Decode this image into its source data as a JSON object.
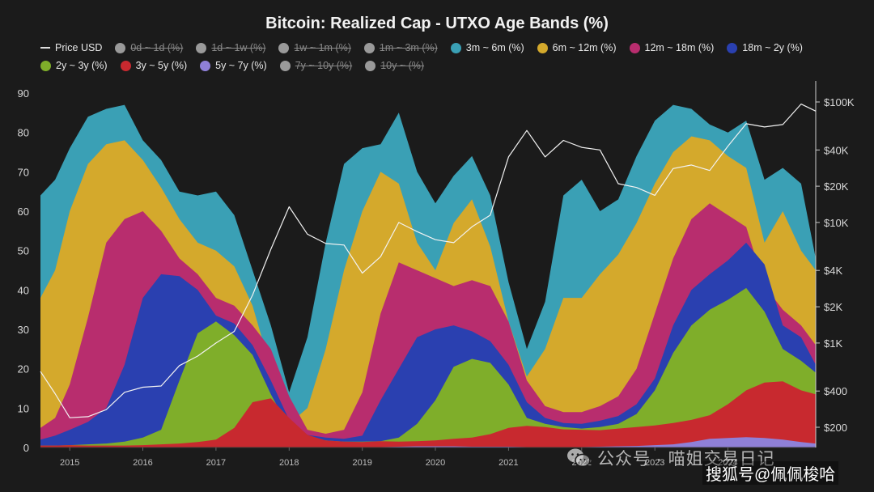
{
  "chart_data": {
    "type": "area",
    "title": "Bitcoin: Realized Cap - UTXO Age Bands (%)",
    "x_ticks": [
      "2015",
      "2016",
      "2017",
      "2018",
      "2019",
      "2020",
      "2021",
      "2022",
      "2023",
      "2024"
    ],
    "y_ticks": [
      "0",
      "10",
      "20",
      "30",
      "40",
      "50",
      "60",
      "70",
      "80",
      "90"
    ],
    "y2_ticks": [
      "$200",
      "$400",
      "$1K",
      "$2K",
      "$4K",
      "$10K",
      "$20K",
      "$40K",
      "$100K"
    ],
    "ylim": [
      0,
      90
    ],
    "y2_log": true,
    "stacking": "stacked percent of realized cap",
    "grid": false,
    "legend_position": "top",
    "x": [
      2014.6,
      2014.8,
      2015.0,
      2015.25,
      2015.5,
      2015.75,
      2016.0,
      2016.25,
      2016.5,
      2016.75,
      2017.0,
      2017.25,
      2017.5,
      2017.75,
      2018.0,
      2018.25,
      2018.5,
      2018.75,
      2019.0,
      2019.25,
      2019.5,
      2019.75,
      2020.0,
      2020.25,
      2020.5,
      2020.75,
      2021.0,
      2021.25,
      2021.5,
      2021.75,
      2022.0,
      2022.25,
      2022.5,
      2022.75,
      2023.0,
      2023.25,
      2023.5,
      2023.75,
      2024.0,
      2024.25,
      2024.5,
      2024.75,
      2025.0,
      2025.2
    ],
    "legend": [
      {
        "name": "Price USD",
        "color": "#dddddd",
        "enabled": true,
        "line": true
      },
      {
        "name": "0d ~ 1d (%)",
        "color": "#9a9a9a",
        "enabled": false
      },
      {
        "name": "1d ~ 1w (%)",
        "color": "#9a9a9a",
        "enabled": false
      },
      {
        "name": "1w ~ 1m (%)",
        "color": "#9a9a9a",
        "enabled": false
      },
      {
        "name": "1m ~ 3m (%)",
        "color": "#9a9a9a",
        "enabled": false
      },
      {
        "name": "3m ~ 6m (%)",
        "color": "#3aa0b5",
        "enabled": true
      },
      {
        "name": "6m ~ 12m (%)",
        "color": "#d4a92c",
        "enabled": true
      },
      {
        "name": "12m ~ 18m (%)",
        "color": "#b82d6e",
        "enabled": true
      },
      {
        "name": "18m ~ 2y (%)",
        "color": "#2a40b0",
        "enabled": true
      },
      {
        "name": "2y ~ 3y (%)",
        "color": "#7fae2a",
        "enabled": true
      },
      {
        "name": "3y ~ 5y (%)",
        "color": "#c8292f",
        "enabled": true
      },
      {
        "name": "5y ~ 7y (%)",
        "color": "#8f80d8",
        "enabled": true
      },
      {
        "name": "7y ~ 10y (%)",
        "color": "#9a9a9a",
        "enabled": false
      },
      {
        "name": "10y ~ (%)",
        "color": "#9a9a9a",
        "enabled": false
      }
    ],
    "series": [
      {
        "name": "5y ~ 7y (%)",
        "color": "#8f80d8",
        "values": [
          0.1,
          0.1,
          0.1,
          0.1,
          0.1,
          0.1,
          0.1,
          0.1,
          0.1,
          0.1,
          0.1,
          0.1,
          0.1,
          0.1,
          0.1,
          0.1,
          0.1,
          0.1,
          0.1,
          0.1,
          0.2,
          0.3,
          0.3,
          0.3,
          0.2,
          0.2,
          0.2,
          0.1,
          0.1,
          0.1,
          0.1,
          0.2,
          0.3,
          0.4,
          0.6,
          0.8,
          1.4,
          2.2,
          2.4,
          2.6,
          2.4,
          2.0,
          1.4,
          1.0
        ]
      },
      {
        "name": "3y ~ 5y (%)",
        "color": "#c8292f",
        "values": [
          0.5,
          0.5,
          0.6,
          0.5,
          0.5,
          0.5,
          0.6,
          0.8,
          1.0,
          1.4,
          2.0,
          5.0,
          11.5,
          12.5,
          7.5,
          3.2,
          1.8,
          1.5,
          1.4,
          1.6,
          1.5,
          1.6,
          1.8,
          2.2,
          2.5,
          3.4,
          5.0,
          5.5,
          5.2,
          4.6,
          4.5,
          4.4,
          4.8,
          5.2,
          5.6,
          6.2,
          7.0,
          8.2,
          11.0,
          14.5,
          16.5,
          16.8,
          14.5,
          13.5
        ]
      },
      {
        "name": "2y ~ 3y (%)",
        "color": "#7fae2a",
        "values": [
          0.5,
          0.5,
          0.6,
          0.8,
          1.0,
          1.5,
          2.5,
          4.5,
          17.0,
          29.0,
          32.0,
          28.5,
          23.5,
          13.5,
          5.0,
          2.3,
          1.8,
          1.5,
          1.5,
          1.6,
          2.5,
          6.0,
          12.0,
          20.5,
          22.5,
          21.5,
          16.0,
          7.5,
          6.0,
          5.2,
          4.8,
          5.2,
          6.0,
          8.5,
          14.5,
          24.0,
          31.0,
          35.0,
          37.5,
          40.5,
          34.5,
          25.0,
          22.0,
          19.0
        ]
      },
      {
        "name": "18m ~ 2y (%)",
        "color": "#2a40b0",
        "values": [
          2.0,
          3.0,
          4.5,
          6.5,
          10.0,
          21.0,
          38.0,
          44.0,
          43.5,
          40.0,
          33.5,
          31.5,
          26.0,
          17.0,
          7.0,
          3.2,
          2.5,
          2.2,
          3.0,
          12.0,
          20.0,
          28.0,
          30.0,
          31.0,
          29.5,
          27.0,
          21.0,
          11.5,
          7.5,
          6.2,
          6.0,
          6.8,
          8.0,
          11.0,
          17.5,
          31.0,
          40.0,
          44.0,
          47.5,
          52.0,
          46.5,
          31.0,
          28.0,
          21.0
        ]
      },
      {
        "name": "12m ~ 18m (%)",
        "color": "#b82d6e",
        "values": [
          5.0,
          7.5,
          16.0,
          33.0,
          52.0,
          58.0,
          60.0,
          55.0,
          48.0,
          44.0,
          38.0,
          36.0,
          31.0,
          25.0,
          13.0,
          4.5,
          3.5,
          4.5,
          14.0,
          34.0,
          47.0,
          45.0,
          43.0,
          41.0,
          42.5,
          41.0,
          32.0,
          17.0,
          10.5,
          9.0,
          9.0,
          10.5,
          13.0,
          20.0,
          34.0,
          48.0,
          58.0,
          62.0,
          59.0,
          56.0,
          41.0,
          35.0,
          31.0,
          26.0
        ]
      },
      {
        "name": "6m ~ 12m (%)",
        "color": "#d4a92c",
        "values": [
          38.0,
          45.0,
          60.0,
          72.0,
          77.0,
          78.0,
          73.0,
          66.0,
          58.0,
          52.0,
          50.0,
          46.0,
          36.0,
          20.0,
          6.0,
          10.0,
          25.0,
          45.0,
          60.0,
          70.0,
          67.0,
          52.0,
          45.0,
          57.0,
          63.0,
          51.0,
          32.0,
          18.0,
          25.0,
          38.0,
          38.0,
          44.0,
          49.0,
          57.0,
          67.0,
          75.0,
          79.0,
          78.0,
          74.0,
          71.0,
          52.0,
          60.0,
          50.0,
          45.0
        ]
      },
      {
        "name": "3m ~ 6m (%)",
        "color": "#3aa0b5",
        "values": [
          64.0,
          68.0,
          76.0,
          84.0,
          86.0,
          87.0,
          78.0,
          73.0,
          65.0,
          64.0,
          65.0,
          59.0,
          45.0,
          31.0,
          14.0,
          28.0,
          52.0,
          72.0,
          76.0,
          77.0,
          85.0,
          70.0,
          62.0,
          69.0,
          74.0,
          64.0,
          42.0,
          25.0,
          37.0,
          64.0,
          68.0,
          60.0,
          63.0,
          74.0,
          83.0,
          87.0,
          86.0,
          82.0,
          80.0,
          83.0,
          68.0,
          71.0,
          67.0,
          48.0
        ]
      }
    ],
    "price_series": {
      "name": "Price USD",
      "values": [
        580,
        380,
        240,
        245,
        280,
        390,
        430,
        440,
        650,
        780,
        1000,
        1250,
        2500,
        6000,
        13500,
        8000,
        6700,
        6500,
        3800,
        5200,
        10000,
        8400,
        7200,
        6800,
        9200,
        11500,
        35000,
        58000,
        35000,
        48000,
        42000,
        40000,
        21000,
        19500,
        16800,
        28000,
        30000,
        27000,
        43000,
        66000,
        62000,
        65000,
        96000,
        84000
      ]
    }
  },
  "watermarks": {
    "left_text": "公众号 · 喵姐交易日记",
    "right_text": "搜狐号@佩佩梭哈"
  }
}
